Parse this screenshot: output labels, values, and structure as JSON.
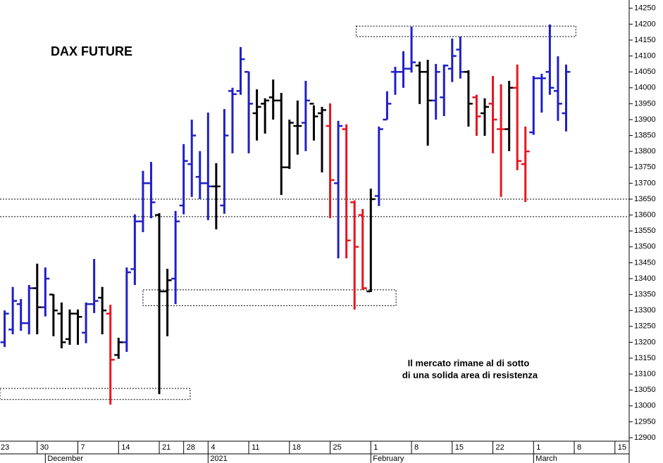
{
  "chart_data": {
    "type": "ohlc",
    "title": "DAX FUTURE",
    "annotation": [
      "Il mercato rimane al di sotto",
      "di una solida area di resistenza"
    ],
    "x": [
      1,
      2,
      3,
      4,
      5,
      6,
      7,
      8,
      9,
      10,
      11,
      12,
      13,
      14,
      15,
      16,
      17,
      18,
      19,
      20,
      21,
      22,
      23,
      24,
      25,
      26,
      27,
      28,
      29,
      30,
      31,
      32,
      33,
      34,
      35,
      36,
      37,
      38,
      39,
      40,
      41,
      42,
      43,
      44,
      45,
      46,
      47,
      48,
      49,
      50,
      51,
      52,
      53,
      54,
      55,
      56,
      57,
      58,
      59,
      60,
      61,
      62,
      63,
      64,
      65,
      66,
      67,
      68,
      69,
      70
    ],
    "open": [
      13200,
      13240,
      13320,
      13260,
      13370,
      13310,
      13350,
      13290,
      13210,
      13290,
      13230,
      13320,
      13340,
      13290,
      13160,
      13200,
      13430,
      13580,
      13700,
      13600,
      13360,
      13400,
      13630,
      13760,
      13720,
      13700,
      13690,
      13630,
      13990,
      13990,
      14050,
      13920,
      13950,
      13970,
      13960,
      13750,
      13880,
      13890,
      13950,
      13920,
      13880,
      13700,
      13870,
      13640,
      13600,
      13360,
      13660,
      13900,
      14050,
      14050,
      14060,
      14070,
      14050,
      13960,
      13970,
      14060,
      14120,
      14050,
      13970,
      13920,
      13950,
      13870,
      13870,
      14000,
      13760,
      13860,
      14030,
      14050,
      13990,
      13920
    ],
    "high": [
      13300,
      13374,
      13336,
      13380,
      13447,
      13435,
      13351,
      13325,
      13303,
      13303,
      13325,
      13462,
      13374,
      13318,
      13214,
      13435,
      13602,
      13739,
      13767,
      13606,
      13431,
      13613,
      13823,
      13900,
      13801,
      13922,
      13763,
      13933,
      14000,
      14128,
      14051,
      13995,
      13967,
      14026,
      13984,
      13900,
      13960,
      14022,
      13945,
      13940,
      13951,
      13896,
      13885,
      13646,
      13619,
      13683,
      13878,
      13989,
      14066,
      14115,
      14192,
      14082,
      14088,
      14075,
      14073,
      14155,
      14161,
      14055,
      13978,
      13967,
      14037,
      14011,
      14022,
      14073,
      13878,
      14037,
      14044,
      14199,
      14099,
      14073
    ],
    "low": [
      13185,
      13225,
      13236,
      13225,
      13225,
      13281,
      13219,
      13181,
      13192,
      13192,
      13197,
      13292,
      13225,
      13004,
      13148,
      13170,
      13380,
      13546,
      13590,
      13037,
      13219,
      13320,
      13602,
      13657,
      13650,
      13584,
      13555,
      13604,
      13794,
      13978,
      13794,
      13834,
      13856,
      13900,
      13663,
      13745,
      13790,
      13801,
      13834,
      13734,
      13590,
      13464,
      13464,
      13303,
      13365,
      13358,
      13628,
      13900,
      13978,
      14000,
      14048,
      13949,
      13818,
      13900,
      13911,
      14018,
      14029,
      13878,
      13849,
      13849,
      13794,
      13657,
      13801,
      13741,
      13641,
      13852,
      13922,
      13978,
      13896,
      13863
    ],
    "close": [
      13290,
      13330,
      13260,
      13370,
      13310,
      13400,
      13300,
      13200,
      13290,
      13280,
      13320,
      13330,
      13300,
      13145,
      13200,
      13420,
      13580,
      13700,
      13640,
      13360,
      13395,
      13580,
      13770,
      13850,
      13700,
      13690,
      13690,
      13850,
      13980,
      14090,
      13950,
      13940,
      13960,
      13960,
      13750,
      13890,
      13880,
      13960,
      13910,
      13930,
      13710,
      13880,
      13520,
      13500,
      13370,
      13650,
      13870,
      13950,
      14050,
      14060,
      14080,
      14050,
      13960,
      14050,
      14070,
      14100,
      14050,
      13950,
      13910,
      13940,
      13900,
      13870,
      14000,
      13770,
      13800,
      14030,
      14030,
      14000,
      13950,
      14050
    ],
    "bar_colors": [
      "#1f1fc8",
      "#1f1fc8",
      "#1f1fc8",
      "#1f1fc8",
      "#000000",
      "#1f1fc8",
      "#000000",
      "#000000",
      "#000000",
      "#000000",
      "#1f1fc8",
      "#1f1fc8",
      "#000000",
      "#e8141e",
      "#000000",
      "#1f1fc8",
      "#1f1fc8",
      "#1f1fc8",
      "#1f1fc8",
      "#000000",
      "#000000",
      "#1f1fc8",
      "#1f1fc8",
      "#1f1fc8",
      "#1f1fc8",
      "#1f1fc8",
      "#000000",
      "#1f1fc8",
      "#1f1fc8",
      "#1f1fc8",
      "#1f1fc8",
      "#000000",
      "#000000",
      "#000000",
      "#000000",
      "#000000",
      "#000000",
      "#1f1fc8",
      "#000000",
      "#000000",
      "#e8141e",
      "#1f1fc8",
      "#e8141e",
      "#e8141e",
      "#e8141e",
      "#000000",
      "#1f1fc8",
      "#1f1fc8",
      "#1f1fc8",
      "#1f1fc8",
      "#1f1fc8",
      "#000000",
      "#000000",
      "#1f1fc8",
      "#1f1fc8",
      "#1f1fc8",
      "#1f1fc8",
      "#000000",
      "#e8141e",
      "#000000",
      "#e8141e",
      "#e8141e",
      "#000000",
      "#e8141e",
      "#e8141e",
      "#1f1fc8",
      "#1f1fc8",
      "#1f1fc8",
      "#1f1fc8",
      "#1f1fc8"
    ],
    "xlim": [
      0.43,
      77.75
    ],
    "ylim": [
      12889,
      14276
    ],
    "yticks": [
      12900,
      12950,
      13000,
      13050,
      13100,
      13150,
      13200,
      13250,
      13300,
      13350,
      13400,
      13450,
      13500,
      13550,
      13600,
      13650,
      13700,
      13750,
      13800,
      13850,
      13900,
      13950,
      14000,
      14050,
      14100,
      14150,
      14200,
      14250
    ],
    "xticks": [
      {
        "value": 0,
        "label": "23"
      },
      {
        "value": 5,
        "label": "30"
      },
      {
        "value": 10,
        "label": "7"
      },
      {
        "value": 15,
        "label": "14"
      },
      {
        "value": 20,
        "label": "21"
      },
      {
        "value": 23,
        "label": "28"
      },
      {
        "value": 26,
        "label": "4"
      },
      {
        "value": 31,
        "label": "11"
      },
      {
        "value": 36,
        "label": "18"
      },
      {
        "value": 41,
        "label": "25"
      },
      {
        "value": 46,
        "label": "1"
      },
      {
        "value": 51,
        "label": "8"
      },
      {
        "value": 56,
        "label": "15"
      },
      {
        "value": 61,
        "label": "22"
      },
      {
        "value": 66,
        "label": "1"
      },
      {
        "value": 71,
        "label": "8"
      },
      {
        "value": 76,
        "label": "15"
      }
    ],
    "month_labels": [
      {
        "value": 6,
        "label": "December"
      },
      {
        "value": 26,
        "label": "2021"
      },
      {
        "value": 46,
        "label": "February"
      },
      {
        "value": 66,
        "label": "March"
      }
    ],
    "levels": [
      13650,
      13595
    ],
    "zones": [
      {
        "x": [
          44.2,
          71.2
        ],
        "y": [
          14161,
          14194
        ]
      },
      {
        "x": [
          18,
          49.1
        ],
        "y": [
          13315,
          13365
        ]
      },
      {
        "x": [
          0.43,
          23.8
        ],
        "y": [
          13020,
          13055
        ]
      }
    ]
  }
}
